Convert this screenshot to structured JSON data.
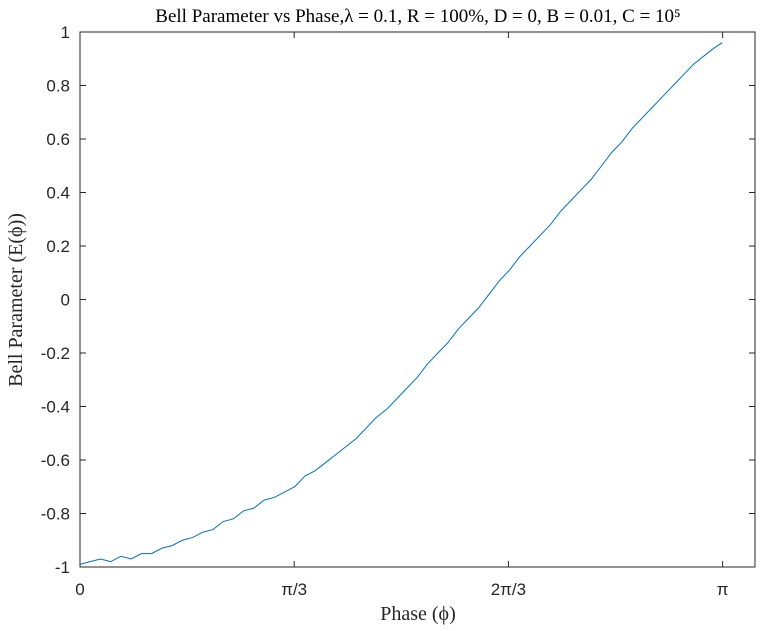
{
  "chart_data": {
    "type": "line",
    "title": "Bell Parameter vs Phase,λ = 0.1, R = 100%, D = 0, B = 0.01, C = 10⁵",
    "xlabel": "Phase (ϕ)",
    "ylabel": "Bell Parameter (E(ϕ))",
    "xlim": [
      0,
      3.3
    ],
    "ylim": [
      -1,
      1
    ],
    "x_ticks": [
      {
        "value": 0,
        "label": "0"
      },
      {
        "value": 1.0472,
        "label": "π/3"
      },
      {
        "value": 2.0944,
        "label": "2π/3"
      },
      {
        "value": 3.1416,
        "label": "π"
      }
    ],
    "y_ticks": [
      {
        "value": -1,
        "label": "-1"
      },
      {
        "value": -0.8,
        "label": "-0.8"
      },
      {
        "value": -0.6,
        "label": "-0.6"
      },
      {
        "value": -0.4,
        "label": "-0.4"
      },
      {
        "value": -0.2,
        "label": "-0.2"
      },
      {
        "value": 0,
        "label": "0"
      },
      {
        "value": 0.2,
        "label": "0.2"
      },
      {
        "value": 0.4,
        "label": "0.4"
      },
      {
        "value": 0.6,
        "label": "0.6"
      },
      {
        "value": 0.8,
        "label": "0.8"
      },
      {
        "value": 1,
        "label": "1"
      }
    ],
    "grid": false,
    "series": [
      {
        "color": "#0072BD",
        "x": [
          0.0,
          0.05,
          0.1,
          0.15,
          0.2,
          0.25,
          0.3,
          0.35,
          0.4,
          0.45,
          0.5,
          0.55,
          0.6,
          0.65,
          0.7,
          0.75,
          0.8,
          0.85,
          0.9,
          0.95,
          1.0,
          1.05,
          1.1,
          1.15,
          1.2,
          1.25,
          1.3,
          1.35,
          1.4,
          1.45,
          1.5,
          1.55,
          1.6,
          1.65,
          1.7,
          1.75,
          1.8,
          1.85,
          1.9,
          1.95,
          2.0,
          2.05,
          2.1,
          2.15,
          2.2,
          2.25,
          2.3,
          2.35,
          2.4,
          2.45,
          2.5,
          2.55,
          2.6,
          2.65,
          2.7,
          2.75,
          2.8,
          2.85,
          2.9,
          2.95,
          3.0,
          3.05,
          3.1,
          3.14
        ],
        "y": [
          -0.99,
          -0.98,
          -0.97,
          -0.98,
          -0.96,
          -0.97,
          -0.95,
          -0.95,
          -0.93,
          -0.92,
          -0.9,
          -0.89,
          -0.87,
          -0.86,
          -0.83,
          -0.82,
          -0.79,
          -0.78,
          -0.75,
          -0.74,
          -0.72,
          -0.7,
          -0.66,
          -0.64,
          -0.61,
          -0.58,
          -0.55,
          -0.52,
          -0.48,
          -0.44,
          -0.41,
          -0.37,
          -0.33,
          -0.29,
          -0.24,
          -0.2,
          -0.16,
          -0.11,
          -0.07,
          -0.03,
          0.02,
          0.07,
          0.11,
          0.16,
          0.2,
          0.24,
          0.28,
          0.33,
          0.37,
          0.41,
          0.45,
          0.5,
          0.55,
          0.59,
          0.64,
          0.68,
          0.72,
          0.76,
          0.8,
          0.84,
          0.88,
          0.91,
          0.94,
          0.96
        ]
      }
    ]
  }
}
